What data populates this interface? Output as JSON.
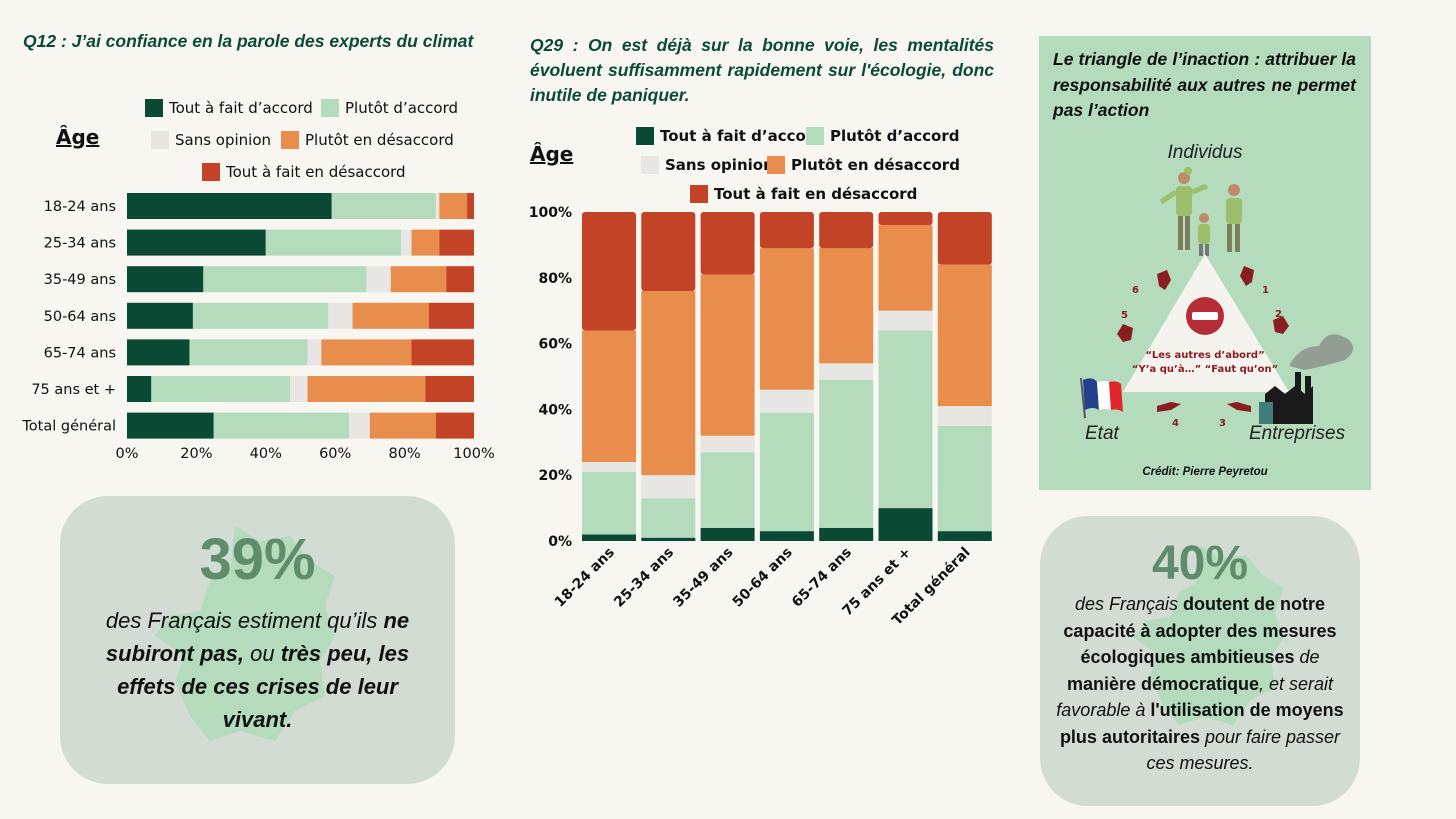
{
  "legend": {
    "categories": [
      "Tout à fait d’accord",
      "Plutôt d’accord",
      "Sans opinion",
      "Plutôt en désaccord",
      "Tout à fait en désaccord"
    ],
    "colors": [
      "#0a4a35",
      "#b3dbbc",
      "#e7e6e2",
      "#e88d4c",
      "#c24325"
    ]
  },
  "q12": {
    "title": "Q12 : J’ai confiance en la parole des experts du climat",
    "age_label": "Âge"
  },
  "q29": {
    "title": "Q29 : On est déjà sur la bonne voie, les mentalités évoluent suffisamment rapidement sur l'écologie, donc inutile de paniquer.",
    "age_label": "Âge"
  },
  "chart_data": [
    {
      "type": "bar",
      "orientation": "horizontal",
      "stacked": true,
      "categories": [
        "18-24 ans",
        "25-34 ans",
        "35-49 ans",
        "50-64 ans",
        "65-74 ans",
        "75 ans et +",
        "Total général"
      ],
      "series": [
        {
          "name": "Tout à fait d’accord",
          "values": [
            59,
            40,
            22,
            19,
            18,
            7,
            25
          ]
        },
        {
          "name": "Plutôt d’accord",
          "values": [
            30,
            39,
            47,
            39,
            34,
            40,
            39
          ]
        },
        {
          "name": "Sans opinion",
          "values": [
            1,
            3,
            7,
            7,
            4,
            5,
            6
          ]
        },
        {
          "name": "Plutôt en désaccord",
          "values": [
            8,
            8,
            16,
            22,
            26,
            34,
            19
          ]
        },
        {
          "name": "Tout à fait en désaccord",
          "values": [
            2,
            10,
            8,
            13,
            18,
            14,
            11
          ]
        }
      ],
      "xlim": [
        0,
        100
      ],
      "ticks": [
        "0%",
        "20%",
        "40%",
        "60%",
        "80%",
        "100%"
      ]
    },
    {
      "type": "bar",
      "orientation": "vertical",
      "stacked": true,
      "categories": [
        "18-24 ans",
        "25-34 ans",
        "35-49 ans",
        "50-64 ans",
        "65-74 ans",
        "75 ans et +",
        "Total général"
      ],
      "series": [
        {
          "name": "Tout à fait d’accord",
          "values": [
            2,
            1,
            4,
            3,
            4,
            10,
            3
          ]
        },
        {
          "name": "Plutôt d’accord",
          "values": [
            19,
            12,
            23,
            36,
            45,
            54,
            32
          ]
        },
        {
          "name": "Sans opinion",
          "values": [
            3,
            7,
            5,
            7,
            5,
            6,
            6
          ]
        },
        {
          "name": "Plutôt en désaccord",
          "values": [
            40,
            56,
            49,
            43,
            35,
            26,
            43
          ]
        },
        {
          "name": "Tout à fait en désaccord",
          "values": [
            36,
            24,
            19,
            11,
            11,
            4,
            16
          ]
        }
      ],
      "ylim": [
        0,
        100
      ],
      "ticks": [
        "0%",
        "20%",
        "40%",
        "60%",
        "80%",
        "100%"
      ]
    }
  ],
  "triangle": {
    "title": "Le triangle de l’inaction : attribuer la responsabilité aux autres ne permet pas l’action",
    "top": "Individus",
    "left": "Etat",
    "right": "Entreprises",
    "quote1": "“Les autres d’abord”",
    "quote2": "“Y’a qu’à…” “Faut qu’on”",
    "numbers": [
      "1",
      "2",
      "3",
      "4",
      "5",
      "6"
    ],
    "credit": "Crédit: Pierre Peyretou"
  },
  "stat1": {
    "value": "39%",
    "t1": "des Français estiment qu’ils ",
    "b1": "ne subiront pas,",
    "t2": " ou ",
    "b2": "très peu, les effets de ces crises de leur vivant."
  },
  "stat2": {
    "value": "40%",
    "t1": "des Français ",
    "b1": "doutent de notre capacité à adopter des mesures écologiques ambitieuses",
    "t2": " de ",
    "b2": "manière démocratique",
    "t3": ", et serait favorable à ",
    "b3": "l'utilisation de moyens plus autoritaires",
    "t4": " pour faire passer ces mesures."
  }
}
